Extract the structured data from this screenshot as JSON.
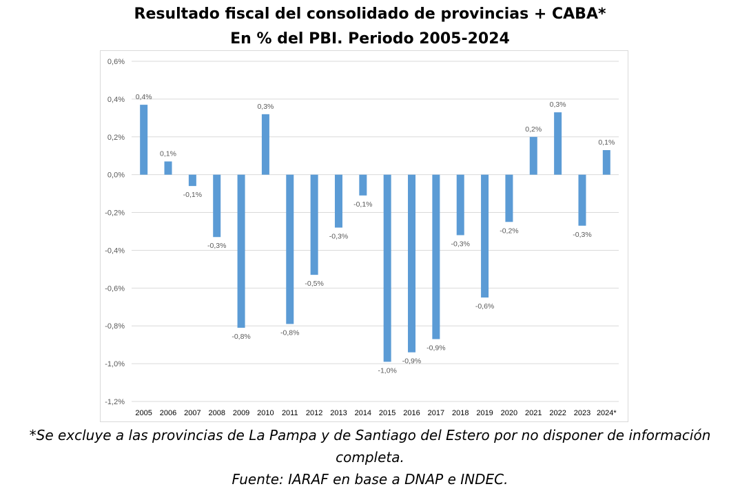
{
  "title_line1": "Resultado fiscal del consolidado de provincias + CABA*",
  "title_line2": "En % del PBI. Periodo 2005-2024",
  "footnote_line1": "*Se excluye a las provincias de La Pampa y de Santiago del Estero por no disponer de información",
  "footnote_line2": "completa.",
  "source": "Fuente: IARAF en base a DNAP e INDEC.",
  "colors": {
    "bar": "#5b9bd5",
    "grid": "#d9d9d9",
    "text": "#595959"
  },
  "chart_data": {
    "type": "bar",
    "title": "Resultado fiscal del consolidado de provincias + CABA* En % del PBI. Periodo 2005-2024",
    "categories": [
      "2005",
      "2006",
      "2007",
      "2008",
      "2009",
      "2010",
      "2011",
      "2012",
      "2013",
      "2014",
      "2015",
      "2016",
      "2017",
      "2018",
      "2019",
      "2020",
      "2021",
      "2022",
      "2023",
      "2024*"
    ],
    "values": [
      0.37,
      0.07,
      -0.06,
      -0.33,
      -0.81,
      0.32,
      -0.79,
      -0.53,
      -0.28,
      -0.11,
      -0.99,
      -0.94,
      -0.87,
      -0.32,
      -0.65,
      -0.25,
      0.2,
      0.33,
      -0.27,
      0.13
    ],
    "data_labels": [
      "0,4%",
      "0,1%",
      "-0,1%",
      "-0,3%",
      "-0,8%",
      "0,3%",
      "-0,8%",
      "-0,5%",
      "-0,3%",
      "-0,1%",
      "-1,0%",
      "-0,9%",
      "-0,9%",
      "-0,3%",
      "-0,6%",
      "-0,2%",
      "0,2%",
      "0,3%",
      "-0,3%",
      "0,1%"
    ],
    "yticks": [
      0.6,
      0.4,
      0.2,
      0.0,
      -0.2,
      -0.4,
      -0.6,
      -0.8,
      -1.0,
      -1.2
    ],
    "ytick_labels": [
      "0,6%",
      "0,4%",
      "0,2%",
      "0,0%",
      "-0,2%",
      "-0,4%",
      "-0,6%",
      "-0,8%",
      "-1,0%",
      "-1,2%"
    ],
    "ylim": [
      -1.2,
      0.6
    ],
    "xlabel": "",
    "ylabel": "",
    "grid": true,
    "legend": "none"
  }
}
